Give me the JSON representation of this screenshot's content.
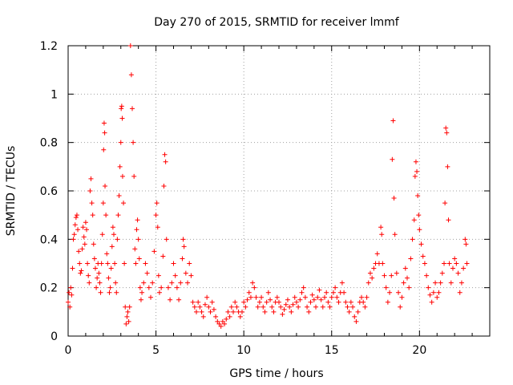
{
  "chart_data": {
    "type": "scatter",
    "title": "Day 270 of 2015, SRMTID for receiver lmmf",
    "xlabel": "GPS time / hours",
    "ylabel": "SRMTID / TECUs",
    "xlim": [
      0,
      24
    ],
    "ylim": [
      0,
      1.2
    ],
    "x_ticks": [
      0,
      5,
      10,
      15,
      20
    ],
    "x_tick_labels": [
      "0",
      "5",
      "10",
      "15",
      "20"
    ],
    "y_ticks": [
      0,
      0.2,
      0.4,
      0.6,
      0.8,
      1.0,
      1.2
    ],
    "y_tick_labels": [
      "0",
      "0.2",
      "0.4",
      "0.6",
      "0.8",
      "1",
      "1.2"
    ],
    "grid": true,
    "marker": "+",
    "series": [
      {
        "name": "SRMTID",
        "color": "#ff0000",
        "points": [
          [
            0.0,
            0.14
          ],
          [
            0.05,
            0.18
          ],
          [
            0.1,
            0.12
          ],
          [
            0.15,
            0.2
          ],
          [
            0.2,
            0.17
          ],
          [
            0.25,
            0.28
          ],
          [
            0.3,
            0.4
          ],
          [
            0.35,
            0.42
          ],
          [
            0.4,
            0.46
          ],
          [
            0.45,
            0.49
          ],
          [
            0.5,
            0.5
          ],
          [
            0.55,
            0.44
          ],
          [
            0.6,
            0.35
          ],
          [
            0.65,
            0.3
          ],
          [
            0.7,
            0.26
          ],
          [
            0.75,
            0.27
          ],
          [
            0.8,
            0.36
          ],
          [
            0.85,
            0.45
          ],
          [
            0.9,
            0.41
          ],
          [
            0.95,
            0.38
          ],
          [
            1.0,
            0.47
          ],
          [
            1.05,
            0.44
          ],
          [
            1.1,
            0.3
          ],
          [
            1.15,
            0.25
          ],
          [
            1.2,
            0.22
          ],
          [
            1.25,
            0.6
          ],
          [
            1.3,
            0.65
          ],
          [
            1.35,
            0.55
          ],
          [
            1.4,
            0.5
          ],
          [
            1.45,
            0.38
          ],
          [
            1.5,
            0.32
          ],
          [
            1.55,
            0.28
          ],
          [
            1.6,
            0.2
          ],
          [
            1.65,
            0.24
          ],
          [
            1.7,
            0.3
          ],
          [
            1.75,
            0.26
          ],
          [
            1.8,
            0.22
          ],
          [
            1.85,
            0.18
          ],
          [
            1.9,
            0.3
          ],
          [
            1.95,
            0.42
          ],
          [
            2.0,
            0.55
          ],
          [
            2.02,
            0.77
          ],
          [
            2.05,
            0.88
          ],
          [
            2.08,
            0.84
          ],
          [
            2.1,
            0.62
          ],
          [
            2.15,
            0.5
          ],
          [
            2.2,
            0.34
          ],
          [
            2.25,
            0.3
          ],
          [
            2.3,
            0.24
          ],
          [
            2.35,
            0.18
          ],
          [
            2.4,
            0.2
          ],
          [
            2.45,
            0.28
          ],
          [
            2.5,
            0.37
          ],
          [
            2.55,
            0.45
          ],
          [
            2.6,
            0.42
          ],
          [
            2.65,
            0.3
          ],
          [
            2.7,
            0.22
          ],
          [
            2.75,
            0.18
          ],
          [
            2.8,
            0.4
          ],
          [
            2.85,
            0.5
          ],
          [
            2.9,
            0.58
          ],
          [
            2.95,
            0.7
          ],
          [
            3.0,
            0.8
          ],
          [
            3.02,
            0.94
          ],
          [
            3.05,
            0.95
          ],
          [
            3.08,
            0.9
          ],
          [
            3.1,
            0.66
          ],
          [
            3.15,
            0.55
          ],
          [
            3.2,
            0.3
          ],
          [
            3.25,
            0.12
          ],
          [
            3.3,
            0.05
          ],
          [
            3.35,
            0.08
          ],
          [
            3.4,
            0.1
          ],
          [
            3.45,
            0.06
          ],
          [
            3.5,
            0.12
          ],
          [
            3.55,
            1.2
          ],
          [
            3.6,
            1.08
          ],
          [
            3.65,
            0.94
          ],
          [
            3.7,
            0.8
          ],
          [
            3.75,
            0.66
          ],
          [
            3.8,
            0.36
          ],
          [
            3.85,
            0.3
          ],
          [
            3.9,
            0.44
          ],
          [
            3.95,
            0.48
          ],
          [
            4.0,
            0.4
          ],
          [
            4.05,
            0.32
          ],
          [
            4.1,
            0.2
          ],
          [
            4.15,
            0.15
          ],
          [
            4.2,
            0.18
          ],
          [
            4.3,
            0.22
          ],
          [
            4.4,
            0.3
          ],
          [
            4.5,
            0.26
          ],
          [
            4.6,
            0.2
          ],
          [
            4.7,
            0.16
          ],
          [
            4.8,
            0.22
          ],
          [
            4.9,
            0.35
          ],
          [
            5.0,
            0.5
          ],
          [
            5.05,
            0.55
          ],
          [
            5.1,
            0.45
          ],
          [
            5.15,
            0.25
          ],
          [
            5.2,
            0.18
          ],
          [
            5.3,
            0.2
          ],
          [
            5.4,
            0.33
          ],
          [
            5.45,
            0.62
          ],
          [
            5.5,
            0.75
          ],
          [
            5.55,
            0.72
          ],
          [
            5.6,
            0.4
          ],
          [
            5.7,
            0.2
          ],
          [
            5.8,
            0.15
          ],
          [
            5.9,
            0.22
          ],
          [
            6.0,
            0.3
          ],
          [
            6.1,
            0.25
          ],
          [
            6.2,
            0.2
          ],
          [
            6.3,
            0.15
          ],
          [
            6.4,
            0.22
          ],
          [
            6.5,
            0.32
          ],
          [
            6.55,
            0.4
          ],
          [
            6.6,
            0.37
          ],
          [
            6.7,
            0.26
          ],
          [
            6.8,
            0.22
          ],
          [
            6.9,
            0.3
          ],
          [
            7.0,
            0.25
          ],
          [
            7.1,
            0.14
          ],
          [
            7.2,
            0.12
          ],
          [
            7.3,
            0.1
          ],
          [
            7.4,
            0.14
          ],
          [
            7.5,
            0.12
          ],
          [
            7.6,
            0.1
          ],
          [
            7.7,
            0.08
          ],
          [
            7.8,
            0.13
          ],
          [
            7.9,
            0.16
          ],
          [
            8.0,
            0.12
          ],
          [
            8.1,
            0.1
          ],
          [
            8.2,
            0.14
          ],
          [
            8.3,
            0.11
          ],
          [
            8.4,
            0.08
          ],
          [
            8.5,
            0.06
          ],
          [
            8.6,
            0.05
          ],
          [
            8.7,
            0.04
          ],
          [
            8.8,
            0.06
          ],
          [
            8.9,
            0.05
          ],
          [
            9.0,
            0.07
          ],
          [
            9.1,
            0.1
          ],
          [
            9.2,
            0.08
          ],
          [
            9.3,
            0.12
          ],
          [
            9.4,
            0.1
          ],
          [
            9.5,
            0.14
          ],
          [
            9.6,
            0.12
          ],
          [
            9.7,
            0.1
          ],
          [
            9.8,
            0.08
          ],
          [
            9.9,
            0.1
          ],
          [
            10.0,
            0.14
          ],
          [
            10.1,
            0.12
          ],
          [
            10.2,
            0.15
          ],
          [
            10.3,
            0.18
          ],
          [
            10.4,
            0.16
          ],
          [
            10.5,
            0.22
          ],
          [
            10.6,
            0.2
          ],
          [
            10.7,
            0.16
          ],
          [
            10.8,
            0.12
          ],
          [
            10.9,
            0.14
          ],
          [
            11.0,
            0.16
          ],
          [
            11.1,
            0.12
          ],
          [
            11.2,
            0.1
          ],
          [
            11.3,
            0.14
          ],
          [
            11.4,
            0.18
          ],
          [
            11.5,
            0.15
          ],
          [
            11.6,
            0.12
          ],
          [
            11.7,
            0.1
          ],
          [
            11.8,
            0.14
          ],
          [
            11.9,
            0.16
          ],
          [
            12.0,
            0.14
          ],
          [
            12.1,
            0.12
          ],
          [
            12.2,
            0.09
          ],
          [
            12.3,
            0.11
          ],
          [
            12.4,
            0.13
          ],
          [
            12.5,
            0.15
          ],
          [
            12.6,
            0.12
          ],
          [
            12.7,
            0.1
          ],
          [
            12.8,
            0.13
          ],
          [
            12.9,
            0.16
          ],
          [
            13.0,
            0.14
          ],
          [
            13.1,
            0.12
          ],
          [
            13.2,
            0.15
          ],
          [
            13.3,
            0.18
          ],
          [
            13.4,
            0.2
          ],
          [
            13.5,
            0.16
          ],
          [
            13.6,
            0.12
          ],
          [
            13.7,
            0.1
          ],
          [
            13.8,
            0.14
          ],
          [
            13.9,
            0.17
          ],
          [
            14.0,
            0.15
          ],
          [
            14.1,
            0.12
          ],
          [
            14.2,
            0.16
          ],
          [
            14.3,
            0.19
          ],
          [
            14.4,
            0.15
          ],
          [
            14.5,
            0.12
          ],
          [
            14.6,
            0.16
          ],
          [
            14.7,
            0.18
          ],
          [
            14.8,
            0.14
          ],
          [
            14.9,
            0.12
          ],
          [
            15.0,
            0.16
          ],
          [
            15.1,
            0.18
          ],
          [
            15.2,
            0.2
          ],
          [
            15.3,
            0.16
          ],
          [
            15.4,
            0.14
          ],
          [
            15.5,
            0.18
          ],
          [
            15.6,
            0.22
          ],
          [
            15.7,
            0.18
          ],
          [
            15.8,
            0.14
          ],
          [
            15.9,
            0.12
          ],
          [
            16.0,
            0.1
          ],
          [
            16.1,
            0.14
          ],
          [
            16.2,
            0.12
          ],
          [
            16.3,
            0.08
          ],
          [
            16.4,
            0.06
          ],
          [
            16.5,
            0.1
          ],
          [
            16.6,
            0.14
          ],
          [
            16.7,
            0.16
          ],
          [
            16.8,
            0.14
          ],
          [
            16.9,
            0.12
          ],
          [
            17.0,
            0.16
          ],
          [
            17.1,
            0.22
          ],
          [
            17.2,
            0.26
          ],
          [
            17.3,
            0.24
          ],
          [
            17.4,
            0.28
          ],
          [
            17.5,
            0.3
          ],
          [
            17.6,
            0.34
          ],
          [
            17.7,
            0.3
          ],
          [
            17.8,
            0.45
          ],
          [
            17.85,
            0.42
          ],
          [
            17.9,
            0.3
          ],
          [
            18.0,
            0.25
          ],
          [
            18.1,
            0.2
          ],
          [
            18.2,
            0.14
          ],
          [
            18.3,
            0.18
          ],
          [
            18.4,
            0.25
          ],
          [
            18.45,
            0.73
          ],
          [
            18.5,
            0.89
          ],
          [
            18.55,
            0.57
          ],
          [
            18.6,
            0.42
          ],
          [
            18.7,
            0.26
          ],
          [
            18.8,
            0.18
          ],
          [
            18.9,
            0.12
          ],
          [
            19.0,
            0.16
          ],
          [
            19.1,
            0.22
          ],
          [
            19.2,
            0.28
          ],
          [
            19.3,
            0.24
          ],
          [
            19.4,
            0.2
          ],
          [
            19.5,
            0.32
          ],
          [
            19.6,
            0.4
          ],
          [
            19.7,
            0.48
          ],
          [
            19.75,
            0.66
          ],
          [
            19.8,
            0.72
          ],
          [
            19.85,
            0.68
          ],
          [
            19.9,
            0.58
          ],
          [
            19.95,
            0.5
          ],
          [
            20.0,
            0.44
          ],
          [
            20.1,
            0.38
          ],
          [
            20.2,
            0.33
          ],
          [
            20.3,
            0.3
          ],
          [
            20.4,
            0.25
          ],
          [
            20.5,
            0.2
          ],
          [
            20.6,
            0.17
          ],
          [
            20.7,
            0.14
          ],
          [
            20.8,
            0.18
          ],
          [
            20.9,
            0.22
          ],
          [
            21.0,
            0.16
          ],
          [
            21.1,
            0.18
          ],
          [
            21.2,
            0.22
          ],
          [
            21.3,
            0.26
          ],
          [
            21.4,
            0.3
          ],
          [
            21.45,
            0.55
          ],
          [
            21.5,
            0.86
          ],
          [
            21.55,
            0.84
          ],
          [
            21.6,
            0.7
          ],
          [
            21.65,
            0.48
          ],
          [
            21.7,
            0.3
          ],
          [
            21.8,
            0.22
          ],
          [
            21.9,
            0.28
          ],
          [
            22.0,
            0.32
          ],
          [
            22.1,
            0.3
          ],
          [
            22.2,
            0.26
          ],
          [
            22.3,
            0.18
          ],
          [
            22.4,
            0.22
          ],
          [
            22.5,
            0.28
          ],
          [
            22.6,
            0.4
          ],
          [
            22.65,
            0.38
          ],
          [
            22.7,
            0.3
          ]
        ]
      }
    ]
  }
}
